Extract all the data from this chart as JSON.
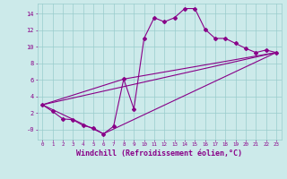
{
  "xlabel": "Windchill (Refroidissement éolien,°C)",
  "background_color": "#cceaea",
  "line_color": "#880088",
  "grid_color": "#99cccc",
  "tick_color": "#880088",
  "label_color": "#880088",
  "xlim": [
    -0.5,
    23.5
  ],
  "ylim": [
    -1.2,
    15.2
  ],
  "yticks": [
    0,
    2,
    4,
    6,
    8,
    10,
    12,
    14
  ],
  "ytick_labels": [
    "-0",
    "2",
    "4",
    "6",
    "8",
    "10",
    "12",
    "14"
  ],
  "xticks": [
    0,
    1,
    2,
    3,
    4,
    5,
    6,
    7,
    8,
    9,
    10,
    11,
    12,
    13,
    14,
    15,
    16,
    17,
    18,
    19,
    20,
    21,
    22,
    23
  ],
  "curve1_x": [
    0,
    1,
    2,
    3,
    4,
    5,
    6,
    7,
    8,
    9,
    10,
    11,
    12,
    13,
    14,
    15,
    16,
    17,
    18,
    19,
    20,
    21,
    22,
    23
  ],
  "curve1_y": [
    3.0,
    2.2,
    1.3,
    1.2,
    0.5,
    0.2,
    -0.5,
    0.4,
    6.1,
    2.5,
    11.0,
    13.5,
    13.0,
    13.5,
    14.6,
    14.6,
    12.1,
    11.0,
    11.0,
    10.4,
    9.8,
    9.3,
    9.6,
    9.3
  ],
  "curve2_x": [
    0,
    23
  ],
  "curve2_y": [
    3.0,
    9.3
  ],
  "curve3_x": [
    0,
    8,
    23
  ],
  "curve3_y": [
    3.0,
    6.1,
    9.3
  ],
  "curve4_x": [
    0,
    6,
    23
  ],
  "curve4_y": [
    3.0,
    -0.5,
    9.3
  ],
  "marker": "D",
  "markersize": 2.0,
  "linewidth": 0.8
}
